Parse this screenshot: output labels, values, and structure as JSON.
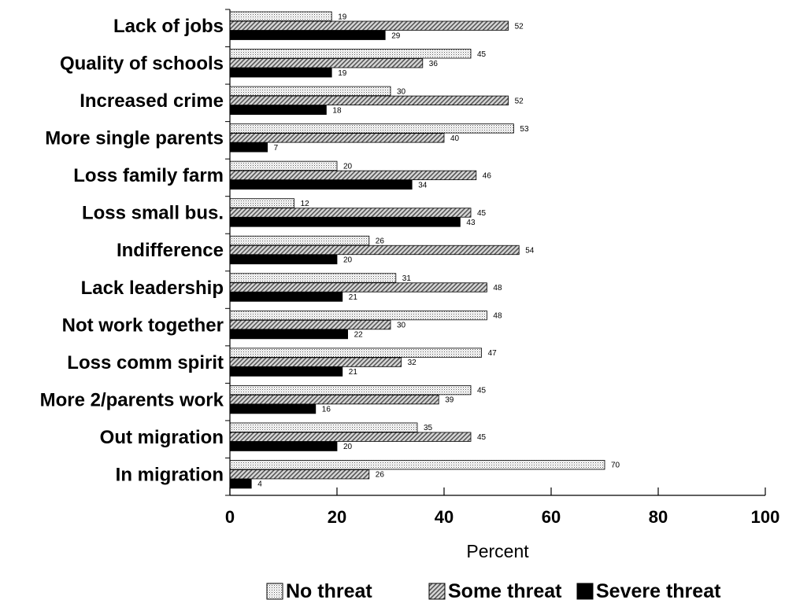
{
  "chart_data": {
    "type": "bar",
    "orientation": "horizontal",
    "categories": [
      "Lack of jobs",
      "Quality of schools",
      "Increased crime",
      "More single parents",
      "Loss family farm",
      "Loss small bus.",
      "Indifference",
      "Lack leadership",
      "Not work together",
      "Loss comm spirit",
      "More 2/parents work",
      "Out migration",
      "In migration"
    ],
    "series": [
      {
        "name": "No threat",
        "color": "#f0f0f0",
        "pattern": "dots",
        "values": [
          19,
          45,
          30,
          53,
          20,
          12,
          26,
          31,
          48,
          47,
          45,
          35,
          70
        ],
        "labels": [
          "19",
          "45",
          "30",
          "53",
          "20",
          "12",
          "26",
          "31",
          "48",
          "47",
          "45",
          "35",
          "70"
        ]
      },
      {
        "name": "Some threat",
        "color": "#aaaaaa",
        "pattern": "diagonal-hatch",
        "values": [
          52,
          36,
          52,
          40,
          46,
          45,
          54,
          48,
          30,
          32,
          39,
          45,
          26
        ],
        "labels": [
          "52",
          "36",
          "52",
          "40",
          "46",
          "45",
          "54",
          "48",
          "30",
          "32",
          "39",
          "45",
          "26"
        ]
      },
      {
        "name": "Severe threat",
        "color": "#000000",
        "pattern": "solid",
        "values": [
          29,
          19,
          18,
          7,
          34,
          43,
          20,
          21,
          22,
          21,
          16,
          20,
          4
        ],
        "labels": [
          "29",
          "19",
          "18",
          "7",
          "34",
          "43",
          "20",
          "21",
          "22",
          "21",
          "16",
          "20",
          "4"
        ]
      }
    ],
    "xlabel": "Percent",
    "ylabel": "",
    "xlim": [
      0,
      100
    ],
    "xticks": [
      0,
      20,
      40,
      60,
      80,
      100
    ],
    "xtick_labels": [
      "0",
      "20",
      "40",
      "60",
      "80",
      "100"
    ],
    "grid": false,
    "legend_position": "bottom"
  }
}
